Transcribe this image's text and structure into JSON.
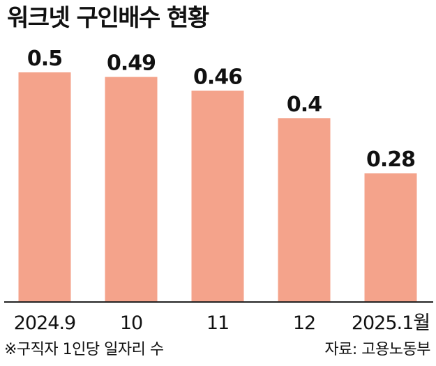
{
  "title": "워크넷 구인배수 현황",
  "footnote": "※구직자 1인당 일자리 수",
  "source": "자료: 고용노동부",
  "colors": {
    "bar": "#f4a38b",
    "axis": "#222222",
    "text": "#111111"
  },
  "chart_data": {
    "type": "bar",
    "title": "워크넷 구인배수 현황",
    "categories": [
      "2024.9",
      "10",
      "11",
      "12",
      "2025.1월"
    ],
    "values": [
      0.5,
      0.49,
      0.46,
      0.4,
      0.28
    ],
    "value_labels": [
      "0.5",
      "0.49",
      "0.46",
      "0.4",
      "0.28"
    ],
    "xlabel": "",
    "ylabel": "",
    "ylim": [
      0,
      0.5
    ],
    "grid": false,
    "legend": "none"
  }
}
